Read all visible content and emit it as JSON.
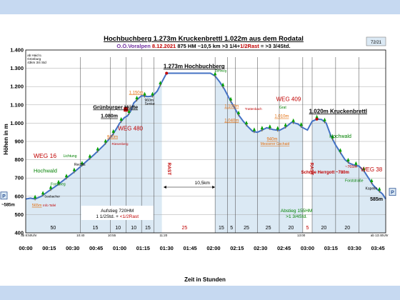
{
  "chart_data": {
    "type": "area",
    "title": "Hochbuchberg 1.273m  Kruckenbrettl 1.022m aus dem Rodatal",
    "subtitle_parts": [
      {
        "text": "O.Ö.Voralpen",
        "color": "#7030a0"
      },
      {
        "text": "8.12.2021",
        "color": "#c00000"
      },
      {
        "text": "875 HM",
        "color": "#000000"
      },
      {
        "text": "~10,5 km",
        "color": "#000000"
      },
      {
        "text": ">3 1/4+",
        "color": "#000000"
      },
      {
        "text": "1/2Rast",
        "color": "#c00000"
      },
      {
        "text": "= >3 3/4Std.",
        "color": "#000000"
      }
    ],
    "page_badge": "72/21",
    "xlabel": "Zeit in Stunden",
    "ylabel": "Höhen in m",
    "xlim": [
      0,
      230
    ],
    "ylim": [
      400,
      1400
    ],
    "x_ticks": [
      {
        "x": 0,
        "label": "00:00"
      },
      {
        "x": 15,
        "label": "00:15"
      },
      {
        "x": 30,
        "label": "00:30"
      },
      {
        "x": 45,
        "label": "00:45"
      },
      {
        "x": 60,
        "label": "01:00"
      },
      {
        "x": 75,
        "label": "01:15"
      },
      {
        "x": 90,
        "label": "01:30"
      },
      {
        "x": 105,
        "label": "01:45"
      },
      {
        "x": 120,
        "label": "02:00"
      },
      {
        "x": 135,
        "label": "02:15"
      },
      {
        "x": 150,
        "label": "02:30"
      },
      {
        "x": 165,
        "label": "02:45"
      },
      {
        "x": 180,
        "label": "03:00"
      },
      {
        "x": 195,
        "label": "03:15"
      },
      {
        "x": 210,
        "label": "03:30"
      },
      {
        "x": 225,
        "label": "03:45"
      }
    ],
    "y_ticks": [
      {
        "y": 400,
        "label": "400"
      },
      {
        "y": 500,
        "label": "500"
      },
      {
        "y": 600,
        "label": "600"
      },
      {
        "y": 700,
        "label": "700"
      },
      {
        "y": 800,
        "label": "800"
      },
      {
        "y": 900,
        "label": "900"
      },
      {
        "y": 1000,
        "label": "1.000"
      },
      {
        "y": 1100,
        "label": "1.100"
      },
      {
        "y": 1200,
        "label": "1.200"
      },
      {
        "y": 1300,
        "label": "1.300"
      },
      {
        "y": 1400,
        "label": "1.400"
      }
    ],
    "series": [
      {
        "points": [
          [
            0,
            585
          ],
          [
            3,
            590
          ],
          [
            6,
            585
          ],
          [
            10,
            600
          ],
          [
            14,
            625
          ],
          [
            20,
            660
          ],
          [
            26,
            700
          ],
          [
            32,
            740
          ],
          [
            38,
            785
          ],
          [
            44,
            830
          ],
          [
            50,
            880
          ],
          [
            55,
            930
          ],
          [
            58,
            970
          ],
          [
            60,
            1000
          ],
          [
            63,
            1030
          ],
          [
            65,
            1040
          ],
          [
            67,
            1065
          ],
          [
            69,
            1110
          ],
          [
            72,
            1135
          ],
          [
            74,
            1150
          ],
          [
            78,
            1145
          ],
          [
            81,
            1148
          ],
          [
            84,
            1175
          ],
          [
            87,
            1225
          ],
          [
            90,
            1273
          ],
          [
            96,
            1273
          ],
          [
            102,
            1273
          ],
          [
            108,
            1273
          ],
          [
            114,
            1273
          ],
          [
            118,
            1273
          ],
          [
            121,
            1258
          ],
          [
            124,
            1225
          ],
          [
            127,
            1185
          ],
          [
            130,
            1135
          ],
          [
            133,
            1090
          ],
          [
            136,
            1045
          ],
          [
            139,
            1010
          ],
          [
            142,
            980
          ],
          [
            145,
            955
          ],
          [
            148,
            950
          ],
          [
            151,
            962
          ],
          [
            154,
            975
          ],
          [
            158,
            965
          ],
          [
            162,
            960
          ],
          [
            166,
            978
          ],
          [
            170,
            1005
          ],
          [
            174,
            995
          ],
          [
            177,
            975
          ],
          [
            180,
            962
          ],
          [
            183,
            1010
          ],
          [
            186,
            1022
          ],
          [
            189,
            1020
          ],
          [
            192,
            1000
          ],
          [
            195,
            930
          ],
          [
            198,
            880
          ],
          [
            201,
            840
          ],
          [
            204,
            800
          ],
          [
            207,
            780
          ],
          [
            210,
            770
          ],
          [
            213,
            765
          ],
          [
            216,
            740
          ],
          [
            219,
            700
          ],
          [
            222,
            660
          ],
          [
            225,
            635
          ],
          [
            228,
            612
          ],
          [
            230,
            585
          ]
        ]
      }
    ],
    "rast_zones": [
      {
        "x0": 87,
        "x1": 121,
        "label": "RAST"
      },
      {
        "x0": 177,
        "x1": 183,
        "label": "RAST"
      }
    ],
    "vlines": [
      35,
      54,
      64,
      74,
      82,
      121,
      129,
      134,
      148,
      162,
      177,
      183,
      198,
      213
    ],
    "segment_minutes": [
      {
        "x0": 0,
        "x1": 35,
        "label": "50"
      },
      {
        "x0": 35,
        "x1": 54,
        "label": "15"
      },
      {
        "x0": 54,
        "x1": 64,
        "label": "10"
      },
      {
        "x0": 64,
        "x1": 74,
        "label": "10"
      },
      {
        "x0": 74,
        "x1": 82,
        "label": "15"
      },
      {
        "x0": 82,
        "x1": 121,
        "label": "25",
        "color": "#c00000"
      },
      {
        "x0": 121,
        "x1": 129,
        "label": "15"
      },
      {
        "x0": 129,
        "x1": 134,
        "label": "5"
      },
      {
        "x0": 134,
        "x1": 148,
        "label": "25"
      },
      {
        "x0": 148,
        "x1": 162,
        "label": "25"
      },
      {
        "x0": 162,
        "x1": 177,
        "label": "20"
      },
      {
        "x0": 177,
        "x1": 183,
        "label": "5",
        "color": "#c00000"
      },
      {
        "x0": 183,
        "x1": 198,
        "label": "20"
      },
      {
        "x0": 198,
        "x1": 213,
        "label": "20"
      }
    ],
    "time_marks": [
      {
        "x": 2,
        "label": "ab 8:50Uhr"
      },
      {
        "x": 35,
        "label": "10:40"
      },
      {
        "x": 55,
        "label": "10:55"
      },
      {
        "x": 88,
        "label": "11:20"
      },
      {
        "x": 176,
        "label": "13:00"
      },
      {
        "x": 226,
        "label": "ab 13:40Uhr"
      }
    ],
    "annotations": [
      {
        "x": 1,
        "y": 1365,
        "text": "ab Haid ü.",
        "size": 4.5,
        "color": "#000000"
      },
      {
        "x": 1,
        "y": 1345,
        "text": "Grünburg",
        "size": 4.5,
        "color": "#000000"
      },
      {
        "x": 1,
        "y": 1325,
        "text": "43km 3/4 Std",
        "size": 4.5,
        "color": "#000000"
      },
      {
        "x": 88,
        "y": 1300,
        "text": "1.273m  Hochbuchberg",
        "size": 8,
        "color": "#000000",
        "weight": "bold",
        "underline": true
      },
      {
        "x": 43,
        "y": 1078,
        "text": "Grünburger Hütte",
        "size": 7.5,
        "color": "#000000",
        "weight": "bold",
        "underline": true
      },
      {
        "x": 48,
        "y": 1030,
        "text": "1.080m",
        "size": 7,
        "color": "#000000",
        "weight": "bold",
        "underline": true
      },
      {
        "x": 59,
        "y": 960,
        "text": "WEG 480",
        "size": 8,
        "color": "#c00000"
      },
      {
        "x": 66,
        "y": 1160,
        "text": "1.150m",
        "size": 6,
        "color": "#e36c09",
        "underline": true
      },
      {
        "x": 76,
        "y": 1118,
        "text": "960m",
        "size": 5,
        "color": "#000000"
      },
      {
        "x": 76,
        "y": 1100,
        "text": "Senke",
        "size": 5,
        "color": "#000000"
      },
      {
        "x": 52,
        "y": 918,
        "text": "940m",
        "size": 6,
        "color": "#e36c09",
        "underline": true
      },
      {
        "x": 55,
        "y": 880,
        "text": "Riesenberg",
        "size": 4.5,
        "color": "#c00000"
      },
      {
        "x": 5,
        "y": 810,
        "text": "WEG 16",
        "size": 8.5,
        "color": "#c00000"
      },
      {
        "x": 5,
        "y": 730,
        "text": "Hochwald",
        "size": 7.5,
        "color": "#008000"
      },
      {
        "x": 24,
        "y": 815,
        "text": "Lichtung",
        "size": 5,
        "color": "#008000"
      },
      {
        "x": 31,
        "y": 768,
        "text": "Rechts",
        "size": 5,
        "color": "#000000"
      },
      {
        "x": 16,
        "y": 660,
        "text": "Forstweg",
        "size": 5,
        "color": "#008000"
      },
      {
        "x": 12,
        "y": 593,
        "text": "Seebacher",
        "size": 4.5,
        "color": "#000000"
      },
      {
        "x": 4,
        "y": 545,
        "text": "565m",
        "size": 5.5,
        "color": "#e36c09",
        "underline": true
      },
      {
        "x": 11,
        "y": 545,
        "text": "Info Tafel",
        "size": 4.5,
        "color": "#c00000"
      },
      {
        "x": 121,
        "y": 1280,
        "text": "Zehweg",
        "size": 4.5,
        "color": "#008000"
      },
      {
        "x": 127,
        "y": 1085,
        "text": "1.100m",
        "size": 6,
        "color": "#e36c09",
        "underline": true
      },
      {
        "x": 140,
        "y": 1072,
        "text": "Trattenbach",
        "size": 4.5,
        "color": "#c00000"
      },
      {
        "x": 127,
        "y": 1008,
        "text": "1.040m",
        "size": 6,
        "color": "#e36c09",
        "underline": true
      },
      {
        "x": 160,
        "y": 1120,
        "text": "WEG 409",
        "size": 8,
        "color": "#c00000"
      },
      {
        "x": 162,
        "y": 1080,
        "text": "Grat",
        "size": 5,
        "color": "#008000"
      },
      {
        "x": 159,
        "y": 1030,
        "text": "1.010m",
        "size": 6,
        "color": "#e36c09",
        "underline": true
      },
      {
        "x": 154,
        "y": 905,
        "text": "940m",
        "size": 6,
        "color": "#e36c09",
        "underline": true
      },
      {
        "x": 150,
        "y": 880,
        "text": "Messerer Gschaid",
        "size": 5,
        "color": "#e36c09",
        "underline": true
      },
      {
        "x": 181,
        "y": 1055,
        "text": "1.020m  Kruckenbrettl",
        "size": 8,
        "color": "#000000",
        "weight": "bold",
        "underline": true
      },
      {
        "x": 194,
        "y": 920,
        "text": "Hochwald",
        "size": 7,
        "color": "#008000"
      },
      {
        "x": 204,
        "y": 755,
        "text": "~765m",
        "size": 5.5,
        "color": "#c00000"
      },
      {
        "x": 176,
        "y": 725,
        "text": "Schnee Herrgott ~780m",
        "size": 6,
        "color": "#c00000",
        "weight": "bold"
      },
      {
        "x": 214,
        "y": 735,
        "text": "WEG 38",
        "size": 8,
        "color": "#c00000"
      },
      {
        "x": 204,
        "y": 680,
        "text": "Forststraße",
        "size": 5,
        "color": "#008000"
      },
      {
        "x": 217,
        "y": 637,
        "text": "Kapelle",
        "size": 5,
        "color": "#000000"
      },
      {
        "x": 220,
        "y": 575,
        "text": "585m",
        "size": 7,
        "color": "#000000",
        "weight": "bold"
      },
      {
        "x": 108,
        "y": 665,
        "text": "10,5km",
        "size": 6.5,
        "color": "#000000"
      },
      {
        "x": 88,
        "y": 750,
        "text": "RAST",
        "size": 6.5,
        "color": "#c00000",
        "weight": "bold",
        "vertical": true
      },
      {
        "x": 179,
        "y": 750,
        "text": "RAST",
        "size": 6.5,
        "color": "#c00000",
        "weight": "bold",
        "vertical": true
      }
    ],
    "aufstieg": {
      "line1": "Aufstieg 720HM",
      "line2a": "1 1/2Std. + ",
      "line2b": "<1/2Rast"
    },
    "abstieg": {
      "line1": "Abstieg 155HM",
      "line2": ">1 3/4Std."
    },
    "left_marker": {
      "letter": "P",
      "label": "~585m"
    },
    "right_marker": {
      "letter": "P"
    },
    "distance_arrow": {
      "x0": 88,
      "x1": 121,
      "y": 650
    },
    "colors": {
      "fill": "#dbe9f4",
      "profile": "#4472c4",
      "rast_band": "#ffffff",
      "grid": "#a6a6a6",
      "tree": "#00a000",
      "trunk": "#7f6000",
      "bands": "#c6d9f1",
      "subtitle_purple": "#7030a0",
      "subtitle_red": "#c00000",
      "orange": "#e36c09"
    }
  }
}
